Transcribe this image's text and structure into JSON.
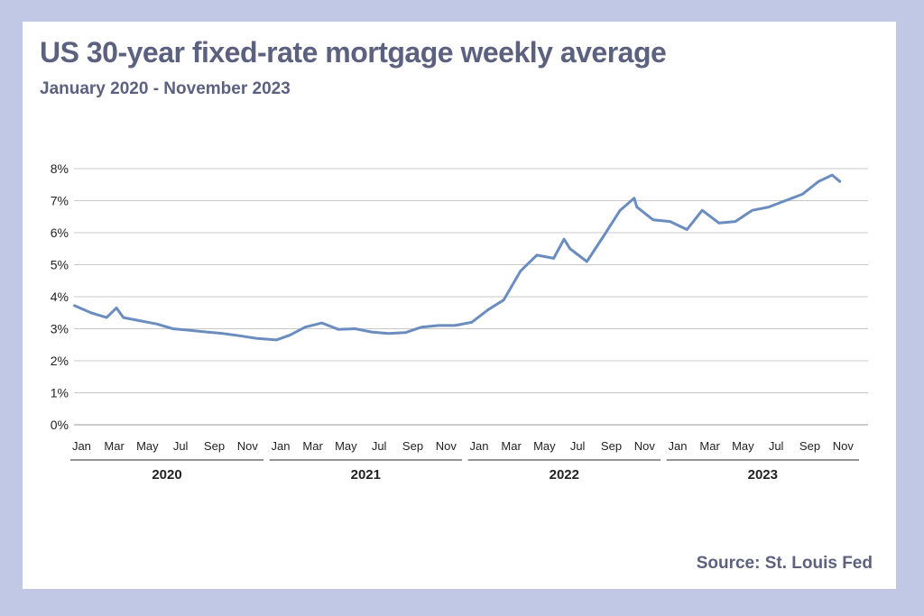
{
  "title": "US 30-year fixed-rate mortgage weekly average",
  "subtitle": "January 2020 - November 2023",
  "source": "Source: St. Louis Fed",
  "colors": {
    "background": "#c1c8e6",
    "line": "#6b8cbf",
    "text": "#5d6180",
    "grid": "#c8c8c8"
  },
  "chart_data": {
    "type": "line",
    "ylim": [
      0,
      8
    ],
    "y_ticks": [
      "0%",
      "1%",
      "2%",
      "3%",
      "4%",
      "5%",
      "6%",
      "7%",
      "8%"
    ],
    "grid": true,
    "month_ticks": [
      "Jan",
      "Mar",
      "May",
      "Jul",
      "Sep",
      "Nov"
    ],
    "years": [
      "2020",
      "2021",
      "2022",
      "2023"
    ],
    "series": [
      {
        "x": [
          "2020-01-02",
          "2020-02-01",
          "2020-03-01",
          "2020-03-19",
          "2020-04-01",
          "2020-05-01",
          "2020-06-01",
          "2020-07-01",
          "2020-08-01",
          "2020-09-01",
          "2020-10-01",
          "2020-11-01",
          "2020-12-01",
          "2021-01-07",
          "2021-02-01",
          "2021-03-01",
          "2021-04-01",
          "2021-05-01",
          "2021-06-01",
          "2021-07-01",
          "2021-08-01",
          "2021-09-01",
          "2021-10-01",
          "2021-11-01",
          "2021-12-01",
          "2022-01-01",
          "2022-02-01",
          "2022-03-01",
          "2022-04-01",
          "2022-05-01",
          "2022-06-01",
          "2022-06-20",
          "2022-07-01",
          "2022-08-01",
          "2022-09-01",
          "2022-10-01",
          "2022-10-27",
          "2022-11-01",
          "2022-12-01",
          "2023-01-01",
          "2023-02-01",
          "2023-03-01",
          "2023-04-01",
          "2023-05-01",
          "2023-06-01",
          "2023-07-01",
          "2023-08-01",
          "2023-09-01",
          "2023-10-01",
          "2023-10-26",
          "2023-11-09"
        ],
        "values": [
          3.72,
          3.5,
          3.35,
          3.65,
          3.35,
          3.25,
          3.15,
          3.0,
          2.95,
          2.9,
          2.85,
          2.78,
          2.7,
          2.65,
          2.8,
          3.05,
          3.18,
          2.98,
          3.0,
          2.9,
          2.85,
          2.88,
          3.05,
          3.1,
          3.1,
          3.2,
          3.6,
          3.9,
          4.8,
          5.3,
          5.2,
          5.8,
          5.5,
          5.1,
          5.9,
          6.7,
          7.08,
          6.8,
          6.4,
          6.35,
          6.1,
          6.7,
          6.3,
          6.35,
          6.7,
          6.8,
          7.0,
          7.2,
          7.6,
          7.8,
          7.6
        ]
      }
    ]
  }
}
